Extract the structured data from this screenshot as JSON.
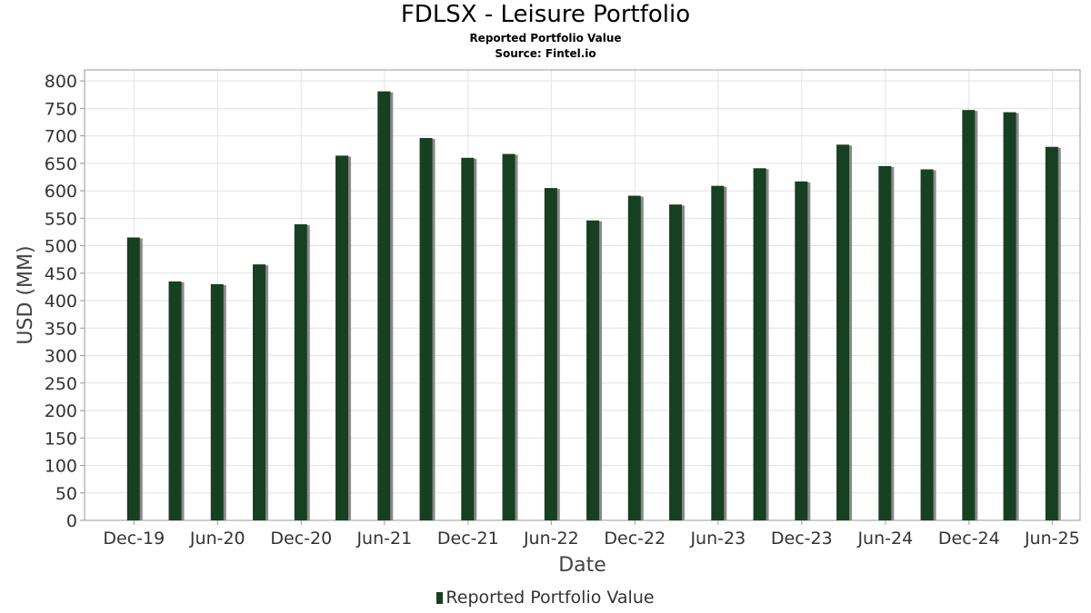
{
  "chart_data": {
    "type": "bar",
    "title": "FDLSX - Leisure Portfolio",
    "subtitle": "Reported Portfolio Value",
    "source": "Source: Fintel.io",
    "xlabel": "Date",
    "ylabel": "USD (MM)",
    "ylim": [
      0,
      820
    ],
    "yticks": [
      0,
      50,
      100,
      150,
      200,
      250,
      300,
      350,
      400,
      450,
      500,
      550,
      600,
      650,
      700,
      750,
      800
    ],
    "xticks": [
      "Dec-19",
      "Jun-20",
      "Dec-20",
      "Jun-21",
      "Dec-21",
      "Jun-22",
      "Dec-22",
      "Jun-23",
      "Dec-23",
      "Jun-24",
      "Dec-24",
      "Jun-25"
    ],
    "categories": [
      "2019-11-30",
      "2020-02-29",
      "2020-05-31",
      "2020-08-31",
      "2020-11-30",
      "2021-02-28",
      "2021-05-31",
      "2021-08-31",
      "2021-11-30",
      "2022-02-28",
      "2022-05-31",
      "2022-08-31",
      "2022-11-30",
      "2023-02-28",
      "2023-05-31",
      "2023-08-31",
      "2023-11-30",
      "2024-02-29",
      "2024-05-31",
      "2024-08-31",
      "2024-11-30",
      "2025-02-28",
      "2025-05-31"
    ],
    "series": [
      {
        "name": "Reported Portfolio Value",
        "values": [
          515,
          435,
          430,
          466,
          539,
          664,
          781,
          696,
          660,
          667,
          605,
          546,
          591,
          575,
          609,
          641,
          617,
          684,
          645,
          639,
          747,
          743,
          680
        ]
      }
    ],
    "grid": true,
    "legend_position": "bottom-center",
    "bar_color": "#173f21",
    "shadow_color": "#8a8a8a"
  }
}
